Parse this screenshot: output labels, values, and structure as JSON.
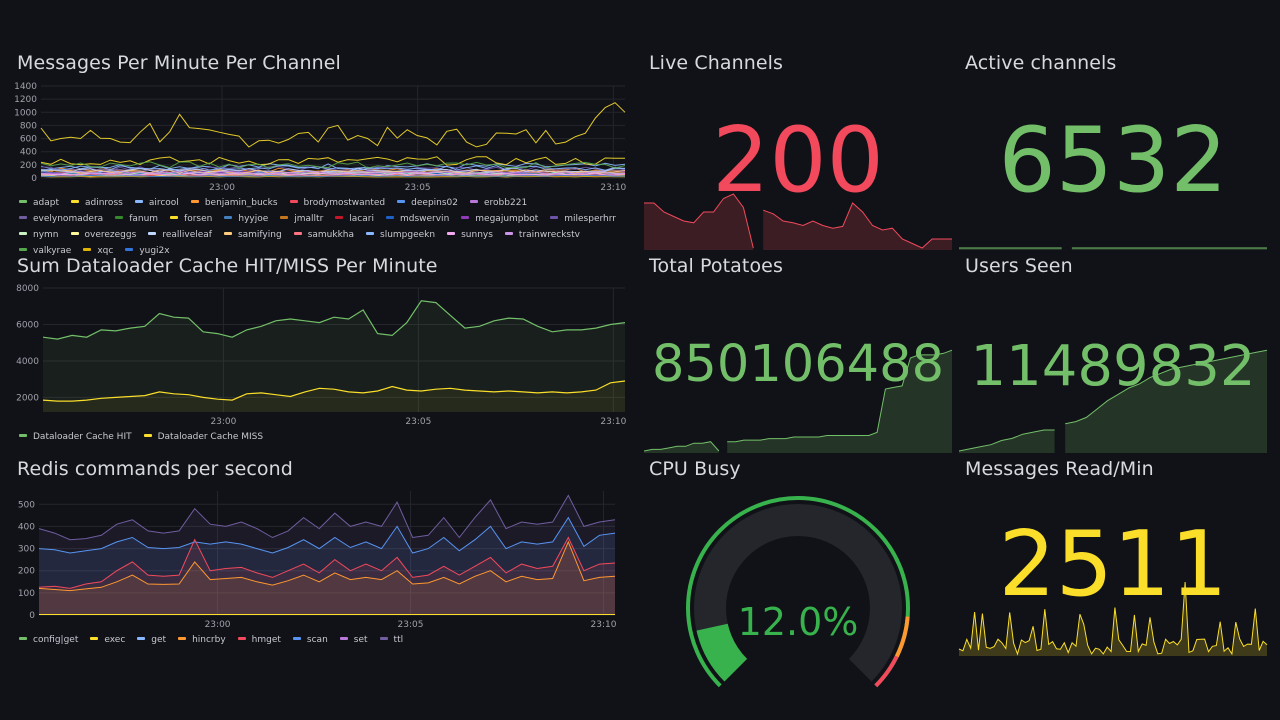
{
  "panels": {
    "messages": {
      "title": "Messages Per Minute Per Channel",
      "y_ticks": [
        "0",
        "200",
        "400",
        "600",
        "800",
        "1000",
        "1200",
        "1400"
      ],
      "x_ticks": [
        "23:00",
        "23:05",
        "23:10"
      ],
      "legend": [
        {
          "name": "adapt",
          "color": "#73bf69"
        },
        {
          "name": "adinross",
          "color": "#fade2a"
        },
        {
          "name": "aircool",
          "color": "#8ab8ff"
        },
        {
          "name": "benjamin_bucks",
          "color": "#ff9830"
        },
        {
          "name": "brodymostwanted",
          "color": "#f2495c"
        },
        {
          "name": "deepins02",
          "color": "#5794f2"
        },
        {
          "name": "erobb221",
          "color": "#b877d9"
        },
        {
          "name": "evelynomadera",
          "color": "#705da0"
        },
        {
          "name": "fanum",
          "color": "#37872d"
        },
        {
          "name": "forsen",
          "color": "#fade2a"
        },
        {
          "name": "hyyjoe",
          "color": "#447ebc"
        },
        {
          "name": "jmalltr",
          "color": "#c4751d"
        },
        {
          "name": "lacari",
          "color": "#c4162a"
        },
        {
          "name": "mdswervin",
          "color": "#1f60c4"
        },
        {
          "name": "megajumpbot",
          "color": "#8f3bb8"
        },
        {
          "name": "milesperhrr",
          "color": "#6d54a8"
        },
        {
          "name": "nymn",
          "color": "#c8f2c2"
        },
        {
          "name": "overezeggs",
          "color": "#fff899"
        },
        {
          "name": "realliveleaf",
          "color": "#c0d8ff"
        },
        {
          "name": "samifying",
          "color": "#ffcb7d"
        },
        {
          "name": "samukkha",
          "color": "#ff7383"
        },
        {
          "name": "slumpgeekn",
          "color": "#8ab8ff"
        },
        {
          "name": "sunnys",
          "color": "#f2a9f0"
        },
        {
          "name": "trainwreckstv",
          "color": "#ca95e5"
        },
        {
          "name": "valkyrae",
          "color": "#56a64b"
        },
        {
          "name": "xqc",
          "color": "#e0b400"
        },
        {
          "name": "yugi2x",
          "color": "#3274d9"
        }
      ]
    },
    "dataloader": {
      "title": "Sum Dataloader Cache HIT/MISS Per Minute",
      "y_ticks": [
        "2000",
        "4000",
        "6000",
        "8000"
      ],
      "x_ticks": [
        "23:00",
        "23:05",
        "23:10"
      ],
      "legend": [
        {
          "name": "Dataloader Cache HIT",
          "color": "#73bf69"
        },
        {
          "name": "Dataloader Cache MISS",
          "color": "#fade2a"
        }
      ]
    },
    "redis": {
      "title": "Redis commands per second",
      "y_ticks": [
        "0",
        "100",
        "200",
        "300",
        "400",
        "500"
      ],
      "x_ticks": [
        "23:00",
        "23:05",
        "23:10"
      ],
      "legend": [
        {
          "name": "config|get",
          "color": "#73bf69"
        },
        {
          "name": "exec",
          "color": "#fade2a"
        },
        {
          "name": "get",
          "color": "#8ab8ff"
        },
        {
          "name": "hincrby",
          "color": "#ff9830"
        },
        {
          "name": "hmget",
          "color": "#f2495c"
        },
        {
          "name": "scan",
          "color": "#5794f2"
        },
        {
          "name": "set",
          "color": "#b877d9"
        },
        {
          "name": "ttl",
          "color": "#705da0"
        }
      ]
    },
    "live_channels": {
      "title": "Live Channels",
      "value": "200",
      "color": "#f2495c"
    },
    "active_channels": {
      "title": "Active channels",
      "value": "6532",
      "color": "#73bf69"
    },
    "total_potatoes": {
      "title": "Total Potatoes",
      "value": "850106488",
      "color": "#73bf69"
    },
    "users_seen": {
      "title": "Users Seen",
      "value": "11489832",
      "color": "#73bf69"
    },
    "cpu_busy": {
      "title": "CPU Busy",
      "value": "12.0%",
      "percent": 12.0,
      "color": "#37b24d"
    },
    "messages_read": {
      "title": "Messages Read/Min",
      "value": "2511",
      "color": "#fade2a"
    }
  }
}
